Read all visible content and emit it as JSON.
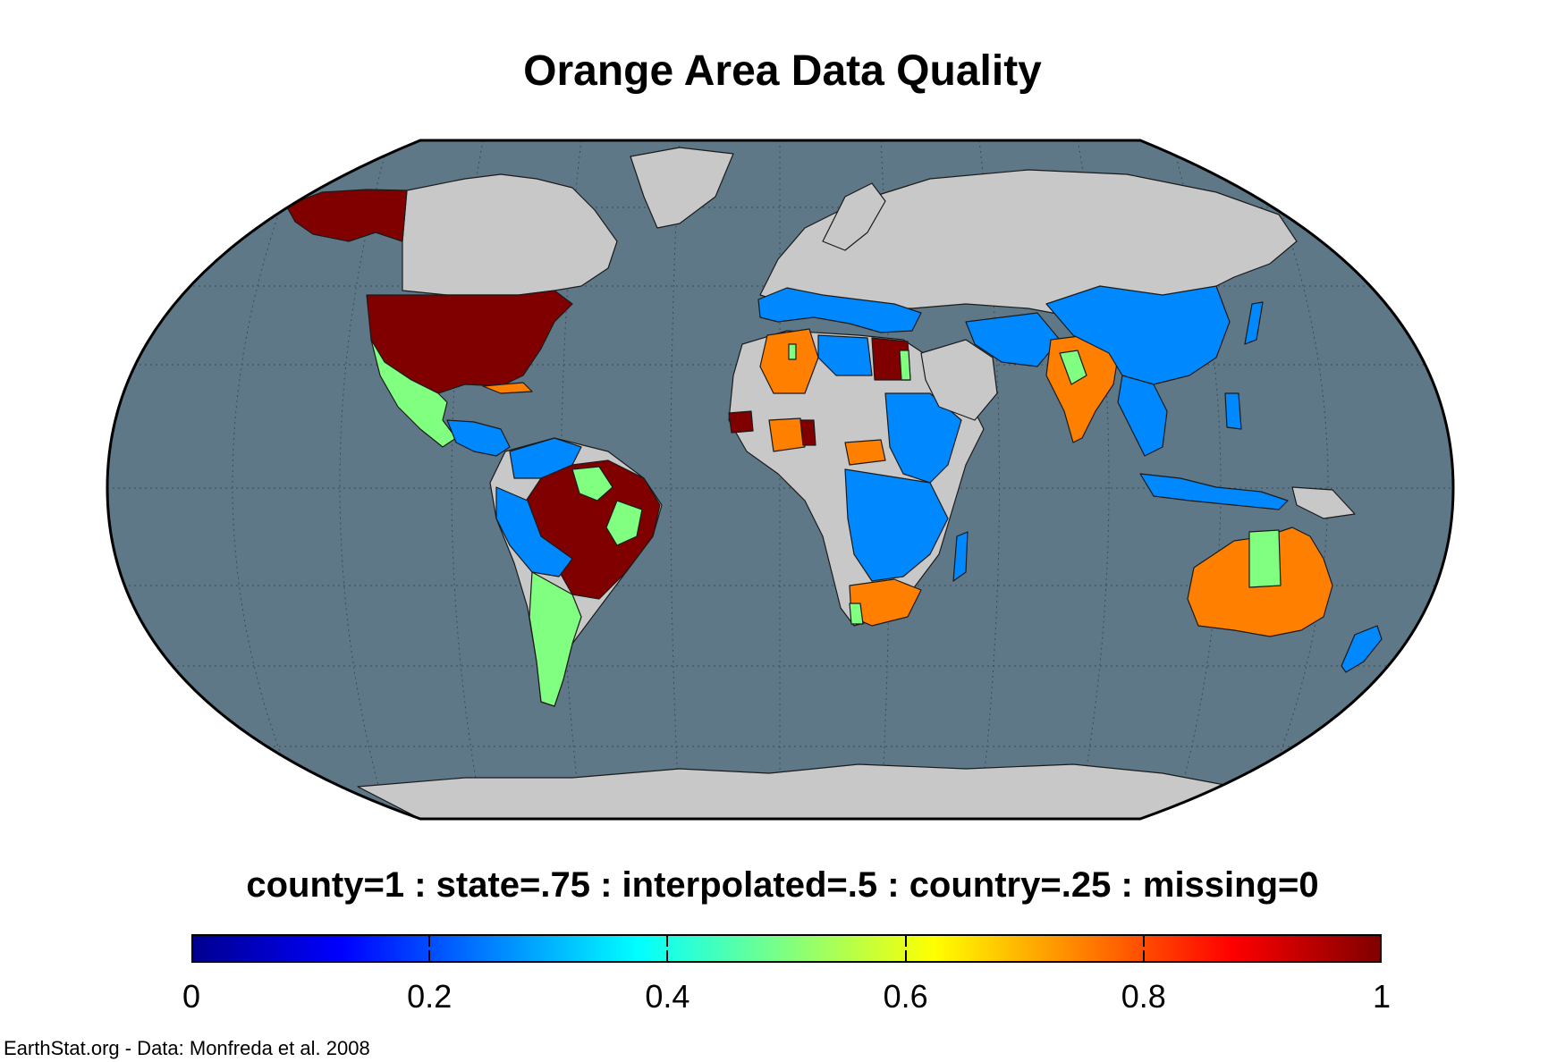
{
  "title": "Orange Area Data Quality",
  "legend": {
    "label": "county=1 : state=.75 : interpolated=.5 : country=.25 : missing=0",
    "scale_min": 0,
    "scale_max": 1,
    "ticks": [
      "0",
      "0.2",
      "0.4",
      "0.6",
      "0.8",
      "1"
    ]
  },
  "credit": "EarthStat.org - Data: Monfreda et al. 2008",
  "colors": {
    "ocean": "#5f7888",
    "no_data_land": "#c8c8c8",
    "county": "#800000",
    "state": "#ff8000",
    "interpolated": "#80ff80",
    "country": "#0088ff"
  },
  "regions": [
    {
      "name": "Alaska",
      "value": 1
    },
    {
      "name": "United States",
      "value": 1
    },
    {
      "name": "Mexico",
      "value": 0.5
    },
    {
      "name": "Brazil",
      "value": 1
    },
    {
      "name": "Argentina",
      "value": 0.5
    },
    {
      "name": "Algeria",
      "value": 0.75
    },
    {
      "name": "Egypt",
      "value": 1
    },
    {
      "name": "South Africa",
      "value": 0.75
    },
    {
      "name": "India",
      "value": 0.75
    },
    {
      "name": "China",
      "value": 0.25
    },
    {
      "name": "Australia",
      "value": 0.75
    },
    {
      "name": "New Zealand",
      "value": 0.25
    }
  ]
}
